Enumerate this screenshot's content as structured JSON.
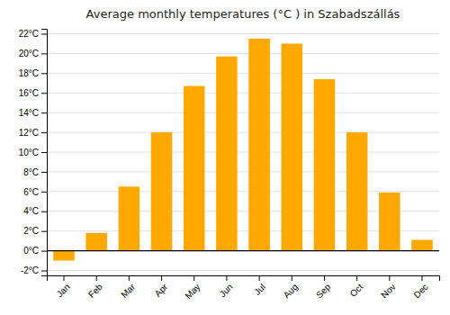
{
  "chart_data": {
    "type": "bar",
    "title": "Average monthly temperatures (°C ) in Szabadszállás",
    "categories": [
      "Jan",
      "Feb",
      "Mar",
      "Apr",
      "May",
      "Jun",
      "Jul",
      "Aug",
      "Sep",
      "Oct",
      "Nov",
      "Dec"
    ],
    "values": [
      -1.0,
      1.8,
      6.5,
      12.0,
      16.7,
      19.7,
      21.5,
      21.0,
      17.4,
      12.0,
      5.9,
      1.1
    ],
    "color": "#FFA800",
    "ylim": [
      -2.5,
      22.5
    ],
    "yticks": [
      {
        "value": -2,
        "label": "-2°C"
      },
      {
        "value": 0,
        "label": "0°C"
      },
      {
        "value": 2,
        "label": "2°C"
      },
      {
        "value": 4,
        "label": "4°C"
      },
      {
        "value": 6,
        "label": "6°C"
      },
      {
        "value": 8,
        "label": "8°C"
      },
      {
        "value": 10,
        "label": "10°C"
      },
      {
        "value": 12,
        "label": "12°C"
      },
      {
        "value": 14,
        "label": "14°C"
      },
      {
        "value": 16,
        "label": "16°C"
      },
      {
        "value": 18,
        "label": "18°C"
      },
      {
        "value": 20,
        "label": "20°C"
      },
      {
        "value": 22,
        "label": "22°C"
      }
    ],
    "grid": true
  }
}
